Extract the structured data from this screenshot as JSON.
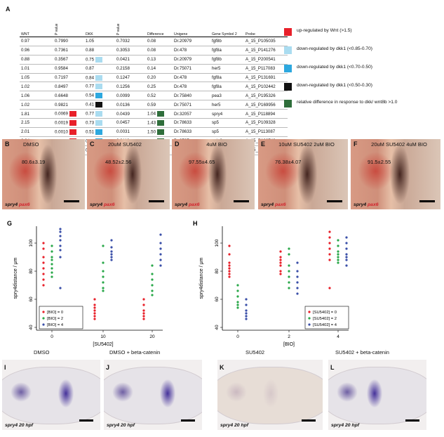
{
  "panel_labels": {
    "A": "A",
    "B": "B",
    "C": "C",
    "D": "D",
    "E": "E",
    "F": "F",
    "G": "G",
    "H": "H",
    "I": "I",
    "J": "J",
    "K": "K",
    "L": "L"
  },
  "table": {
    "headers": [
      "WNT",
      "P value",
      "DKK",
      "P value",
      "Difference",
      "Unigene",
      "Gene Symbol 2",
      "Probe"
    ],
    "rows": [
      {
        "wnt": "0.97",
        "p1": "0.7990",
        "dkk": "1.05",
        "p2": "0.7032",
        "diff": "0.08",
        "unigene": "Dr.20979",
        "gene": "fgf8b",
        "probe": "A_15_P105035",
        "wnt_color": "",
        "dkk_color": "",
        "diff_color": ""
      },
      {
        "wnt": "0.96",
        "p1": "0.7361",
        "dkk": "0.88",
        "p2": "0.3053",
        "diff": "0.08",
        "unigene": "Dr.478",
        "gene": "fgf8a",
        "probe": "A_15_P141276",
        "wnt_color": "",
        "dkk_color": "",
        "diff_color": ""
      },
      {
        "wnt": "0.88",
        "p1": "0.3567",
        "dkk": "0.75",
        "p2": "0.0421",
        "diff": "0.13",
        "unigene": "Dr.20979",
        "gene": "fgf8b",
        "probe": "A_15_P200541",
        "wnt_color": "",
        "dkk_color": "#aadcf0",
        "diff_color": ""
      },
      {
        "wnt": "1.01",
        "p1": "0.9584",
        "dkk": "0.87",
        "p2": "0.2158",
        "diff": "0.14",
        "unigene": "Dr.75071",
        "gene": "her5",
        "probe": "A_15_P117083",
        "wnt_color": "",
        "dkk_color": "",
        "diff_color": ""
      },
      {
        "wnt": "1.05",
        "p1": "0.7197",
        "dkk": "0.84",
        "p2": "0.1247",
        "diff": "0.20",
        "unigene": "Dr.478",
        "gene": "fgf8a",
        "probe": "A_15_P131691",
        "wnt_color": "",
        "dkk_color": "#aadcf0",
        "diff_color": ""
      },
      {
        "wnt": "1.02",
        "p1": "0.8497",
        "dkk": "0.77",
        "p2": "0.1256",
        "diff": "0.25",
        "unigene": "Dr.478",
        "gene": "fgf8a",
        "probe": "A_15_P102442",
        "wnt_color": "",
        "dkk_color": "#aadcf0",
        "diff_color": ""
      },
      {
        "wnt": "1.06",
        "p1": "0.6648",
        "dkk": "0.54",
        "p2": "0.0099",
        "diff": "0.52",
        "unigene": "Dr.75840",
        "gene": "pea3",
        "probe": "A_15_P195326",
        "wnt_color": "",
        "dkk_color": "#2da8df",
        "diff_color": ""
      },
      {
        "wnt": "1.02",
        "p1": "0.9821",
        "dkk": "0.41",
        "p2": "0.0136",
        "diff": "0.59",
        "unigene": "Dr.75071",
        "gene": "her5",
        "probe": "A_15_P169956",
        "wnt_color": "",
        "dkk_color": "#111111",
        "diff_color": ""
      },
      {
        "wnt": "1.81",
        "p1": "0.0069",
        "dkk": "0.77",
        "p2": "0.0439",
        "diff": "1.04",
        "unigene": "Dr.32057",
        "gene": "spry4",
        "probe": "A_15_P118894",
        "wnt_color": "#e8202a",
        "dkk_color": "#aadcf0",
        "diff_color": "#2f6e3b"
      },
      {
        "wnt": "2.15",
        "p1": "0.0019",
        "dkk": "0.73",
        "p2": "0.0457",
        "diff": "1.43",
        "unigene": "Dr.78633",
        "gene": "sp5",
        "probe": "A_15_P109328",
        "wnt_color": "#e8202a",
        "dkk_color": "#aadcf0",
        "diff_color": "#2f6e3b"
      },
      {
        "wnt": "2.01",
        "p1": "0.0010",
        "dkk": "0.51",
        "p2": "0.0031",
        "diff": "1.50",
        "unigene": "Dr.78633",
        "gene": "sp5",
        "probe": "A_15_P113087",
        "wnt_color": "#e8202a",
        "dkk_color": "#2da8df",
        "diff_color": "#2f6e3b"
      },
      {
        "wnt": "2.24",
        "p1": "0.0009",
        "dkk": "0.51",
        "p2": "0.0112",
        "diff": "1.74",
        "unigene": "Dr.3727",
        "gene": "axin2",
        "probe": "A_15_P100742",
        "wnt_color": "#e8202a",
        "dkk_color": "#2da8df",
        "diff_color": "#2f6e3b"
      },
      {
        "wnt": "2.36",
        "p1": "0.0037",
        "dkk": "0.52",
        "p2": "0.0031",
        "diff": "1.84",
        "unigene": "Dr.3690",
        "gene": "wif1",
        "probe": "A_15_P104490",
        "wnt_color": "#e8202a",
        "dkk_color": "#2da8df",
        "diff_color": "#2f6e3b"
      }
    ]
  },
  "legend": [
    {
      "color": "#e8202a",
      "text": "up-regulated by Wnt (>1.5)"
    },
    {
      "color": "#aadcf0",
      "text": "down-regulated by dkk1 (<0.85-0.70)"
    },
    {
      "color": "#2da8df",
      "text": "down-regulated by dkk1 (<0.70-0.50)"
    },
    {
      "color": "#111111",
      "text": "down-regulated by dkk1 (<0.50-0.30)"
    },
    {
      "color": "#2f6e3b",
      "text": "relative difference in response to dkk/ wnt8b >1.0"
    }
  ],
  "embryo_row1": [
    {
      "label": "B",
      "title": "DMSO",
      "value": "80.6±3.19",
      "gene1": "spry4",
      "gene2": "pax6"
    },
    {
      "label": "C",
      "title": "20uM SU5402",
      "value": "48.52±2.56",
      "gene1": "spry4",
      "gene2": "pax6"
    },
    {
      "label": "D",
      "title": "4uM BIO",
      "value": "97.55±4.65",
      "gene1": "spry4",
      "gene2": "pax6"
    },
    {
      "label": "E",
      "title": "10uM SU5402 2uM BIO",
      "value": "76.38±4.07",
      "gene1": "spry4",
      "gene2": "pax6"
    },
    {
      "label": "F",
      "title": "20uM SU5402 4uM BIO",
      "value": "91.5±2.55",
      "gene1": "spry4",
      "gene2": "pax6"
    }
  ],
  "embryo_row2": [
    {
      "label": "I",
      "title": "DMSO",
      "caption": "spry4 20 hpf"
    },
    {
      "label": "J",
      "title": "DMSO + beta-catenin",
      "caption": "spry4 20 hpf"
    },
    {
      "label": "K",
      "title": "SU5402",
      "caption": "spry4 20 hpf"
    },
    {
      "label": "L",
      "title": "SU5402 + beta-catenin",
      "caption": "spry4 20 hpf"
    }
  ],
  "chart_data": [
    {
      "type": "scatter",
      "panel": "G",
      "xlabel": "[SU5402]",
      "ylabel": "spry4distance / μm",
      "x_ticks": [
        0,
        10,
        20
      ],
      "y_ticks": [
        40,
        60,
        80,
        100
      ],
      "ylim": [
        38,
        112
      ],
      "legend_position": "bottom-left",
      "series": [
        {
          "name": "[BIO] = 0",
          "color": "#e8202a",
          "points": [
            [
              0,
              100
            ],
            [
              0,
              96
            ],
            [
              0,
              90
            ],
            [
              0,
              86
            ],
            [
              0,
              82
            ],
            [
              0,
              78
            ],
            [
              0,
              74
            ],
            [
              0,
              70
            ],
            [
              10,
              60
            ],
            [
              10,
              56
            ],
            [
              10,
              54
            ],
            [
              10,
              52
            ],
            [
              10,
              50
            ],
            [
              10,
              48
            ],
            [
              10,
              46
            ],
            [
              20,
              60
            ],
            [
              20,
              56
            ],
            [
              20,
              52
            ],
            [
              20,
              50
            ],
            [
              20,
              48
            ],
            [
              20,
              46
            ]
          ]
        },
        {
          "name": "[BIO] = 2",
          "color": "#2aa84a",
          "points": [
            [
              0,
              98
            ],
            [
              0,
              94
            ],
            [
              0,
              90
            ],
            [
              0,
              88
            ],
            [
              0,
              85
            ],
            [
              0,
              82
            ],
            [
              0,
              79
            ],
            [
              0,
              76
            ],
            [
              10,
              98
            ],
            [
              10,
              86
            ],
            [
              10,
              80
            ],
            [
              10,
              76
            ],
            [
              10,
              72
            ],
            [
              10,
              68
            ],
            [
              10,
              66
            ],
            [
              20,
              84
            ],
            [
              20,
              78
            ],
            [
              20,
              74
            ],
            [
              20,
              70
            ],
            [
              20,
              66
            ],
            [
              20,
              63
            ]
          ]
        },
        {
          "name": "[BIO] = 4",
          "color": "#3a4fa8",
          "points": [
            [
              0,
              110
            ],
            [
              0,
              108
            ],
            [
              0,
              105
            ],
            [
              0,
              102
            ],
            [
              0,
              98
            ],
            [
              0,
              95
            ],
            [
              0,
              90
            ],
            [
              0,
              68
            ],
            [
              10,
              102
            ],
            [
              10,
              97
            ],
            [
              10,
              94
            ],
            [
              10,
              92
            ],
            [
              10,
              90
            ],
            [
              10,
              88
            ],
            [
              20,
              106
            ],
            [
              20,
              100
            ],
            [
              20,
              96
            ],
            [
              20,
              92
            ],
            [
              20,
              88
            ],
            [
              20,
              84
            ]
          ]
        }
      ]
    },
    {
      "type": "scatter",
      "panel": "H",
      "xlabel": "[BIO]",
      "ylabel": "spry4distance / μm",
      "x_ticks": [
        0,
        2,
        4
      ],
      "y_ticks": [
        40,
        60,
        80,
        100
      ],
      "ylim": [
        38,
        112
      ],
      "legend_position": "bottom-right",
      "series": [
        {
          "name": "[SU5402] = 0",
          "color": "#e8202a",
          "points": [
            [
              0,
              98
            ],
            [
              0,
              92
            ],
            [
              0,
              86
            ],
            [
              0,
              84
            ],
            [
              0,
              82
            ],
            [
              0,
              80
            ],
            [
              0,
              78
            ],
            [
              0,
              76
            ],
            [
              2,
              94
            ],
            [
              2,
              90
            ],
            [
              2,
              88
            ],
            [
              2,
              86
            ],
            [
              2,
              84
            ],
            [
              2,
              80
            ],
            [
              2,
              78
            ],
            [
              4,
              108
            ],
            [
              4,
              104
            ],
            [
              4,
              100
            ],
            [
              4,
              96
            ],
            [
              4,
              92
            ],
            [
              4,
              88
            ],
            [
              4,
              68
            ]
          ]
        },
        {
          "name": "[SU5402] = 2",
          "color": "#2aa84a",
          "points": [
            [
              0,
              70
            ],
            [
              0,
              66
            ],
            [
              0,
              62
            ],
            [
              0,
              58
            ],
            [
              0,
              56
            ],
            [
              0,
              54
            ],
            [
              2,
              96
            ],
            [
              2,
              92
            ],
            [
              2,
              84
            ],
            [
              2,
              80
            ],
            [
              2,
              76
            ],
            [
              2,
              72
            ],
            [
              2,
              68
            ],
            [
              4,
              102
            ],
            [
              4,
              98
            ],
            [
              4,
              94
            ],
            [
              4,
              92
            ],
            [
              4,
              90
            ],
            [
              4,
              88
            ],
            [
              4,
              86
            ]
          ]
        },
        {
          "name": "[SU5402] = 4",
          "color": "#3a4fa8",
          "points": [
            [
              0,
              60
            ],
            [
              0,
              56
            ],
            [
              0,
              52
            ],
            [
              0,
              50
            ],
            [
              0,
              48
            ],
            [
              0,
              46
            ],
            [
              2,
              86
            ],
            [
              2,
              80
            ],
            [
              2,
              76
            ],
            [
              2,
              72
            ],
            [
              2,
              68
            ],
            [
              2,
              64
            ],
            [
              4,
              104
            ],
            [
              4,
              100
            ],
            [
              4,
              96
            ],
            [
              4,
              92
            ],
            [
              4,
              90
            ],
            [
              4,
              88
            ],
            [
              4,
              84
            ]
          ]
        }
      ]
    }
  ]
}
